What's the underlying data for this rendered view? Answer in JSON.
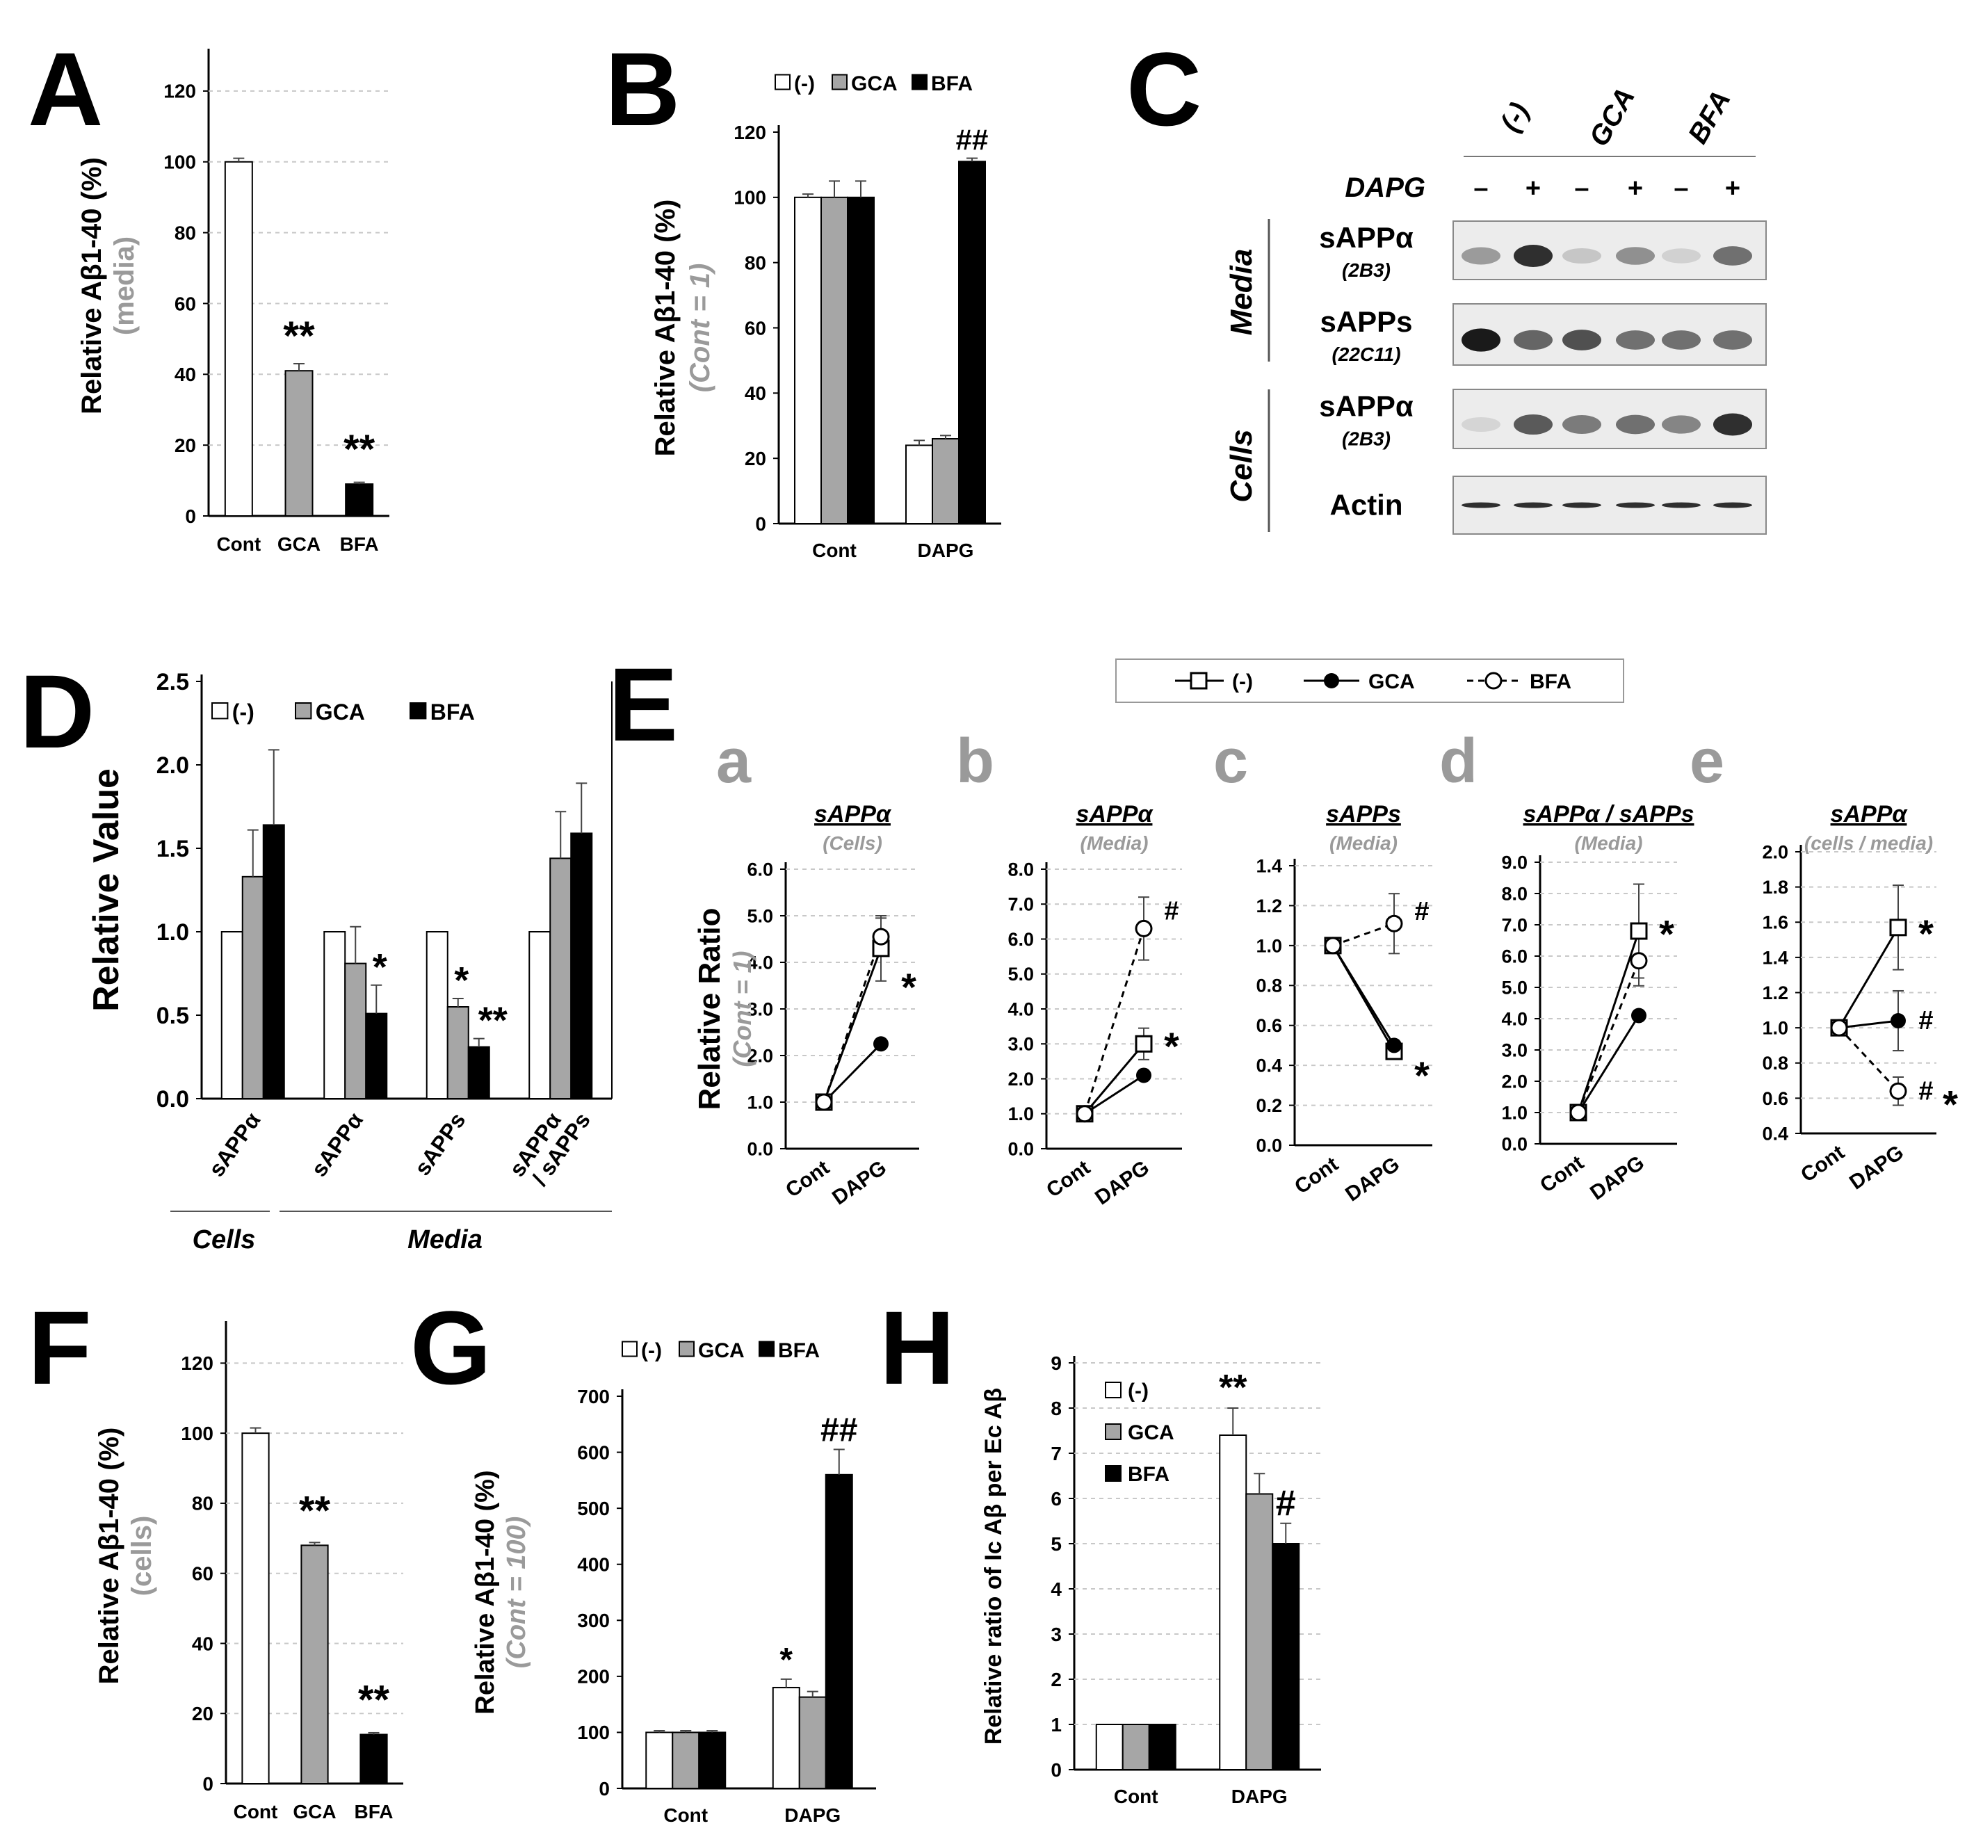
{
  "colors": {
    "none": "#ffffff",
    "gca": "#a6a6a6",
    "bfa": "#000000",
    "gray_text": "#9a9a9a",
    "grid": "#c8c8c8"
  },
  "series_names": [
    "(-)",
    "GCA",
    "BFA"
  ],
  "chart_data": [
    {
      "id": "A",
      "panel": "A",
      "type": "bar",
      "categories": [
        "Cont",
        "GCA",
        "BFA"
      ],
      "values": [
        100,
        41,
        9
      ],
      "errors": [
        1,
        2,
        0.5
      ],
      "sig": [
        "",
        "**",
        "**"
      ],
      "ylabel": "Relative Aβ1-40 (%)",
      "ylabel2": "(media)",
      "ylim": [
        0,
        130
      ],
      "yticks": [
        0,
        20,
        40,
        60,
        80,
        100,
        120
      ],
      "grid": true
    },
    {
      "id": "B",
      "panel": "B",
      "type": "bar",
      "categories": [
        "Cont",
        "DAPG"
      ],
      "series": [
        {
          "name": "(-)",
          "values": [
            100,
            24
          ]
        },
        {
          "name": "GCA",
          "values": [
            100,
            26
          ]
        },
        {
          "name": "BFA",
          "values": [
            100,
            111
          ]
        }
      ],
      "errors": [
        [
          1,
          5,
          5
        ],
        [
          1.5,
          1,
          1
        ]
      ],
      "sig": [
        [
          "",
          "",
          ""
        ],
        [
          "",
          "",
          "##"
        ]
      ],
      "ylabel": "Relative Aβ1-40 (%)",
      "ylabel2": "(Cont = 1)",
      "ylim": [
        0,
        120
      ],
      "yticks": [
        0,
        20,
        40,
        60,
        80,
        100,
        120
      ],
      "legend": "top"
    },
    {
      "id": "D",
      "panel": "D",
      "type": "bar",
      "categories": [
        "sAPPα",
        "sAPPα",
        "sAPPs",
        "sAPPα / sAPPs"
      ],
      "groups": [
        "Cells",
        "Media"
      ],
      "series": [
        {
          "name": "(-)",
          "values": [
            1.0,
            1.0,
            1.0,
            1.0
          ]
        },
        {
          "name": "GCA",
          "values": [
            1.33,
            0.81,
            0.55,
            1.44
          ]
        },
        {
          "name": "BFA",
          "values": [
            1.64,
            0.51,
            0.31,
            1.59
          ]
        }
      ],
      "errors": [
        [
          0,
          0.28,
          0.45
        ],
        [
          0,
          0.22,
          0.17
        ],
        [
          0,
          0.05,
          0.05
        ],
        [
          0,
          0.28,
          0.3
        ]
      ],
      "sig": [
        [
          "",
          "",
          ""
        ],
        [
          "",
          "",
          "*"
        ],
        [
          "",
          "*",
          "**"
        ],
        [
          "",
          "",
          ""
        ]
      ],
      "ylabel": "Relative Value",
      "ylim": [
        0,
        2.5
      ],
      "yticks": [
        0.0,
        0.5,
        1.0,
        1.5,
        2.0,
        2.5
      ],
      "legend": "top"
    },
    {
      "id": "Ea",
      "panel": "a",
      "type": "line",
      "title": "sAPPα",
      "subtitle": "(Cells)",
      "x": [
        "Cont",
        "DAPG"
      ],
      "series": [
        {
          "name": "(-)",
          "values": [
            1.0,
            4.3
          ],
          "err": 0.7
        },
        {
          "name": "GCA",
          "values": [
            1.0,
            2.25
          ],
          "err": 0
        },
        {
          "name": "BFA",
          "values": [
            1.0,
            4.55
          ],
          "err": 0.4
        }
      ],
      "sig": [
        {
          "text": "*",
          "y": 3.6
        }
      ],
      "ylim": [
        0,
        6
      ],
      "yticks": [
        "0.0",
        "1.0",
        "2.0",
        "3.0",
        "4.0",
        "5.0",
        "6.0"
      ],
      "ylabel": "Relative Ratio",
      "ylabel2": "(Cont = 1)"
    },
    {
      "id": "Eb",
      "panel": "b",
      "type": "line",
      "title": "sAPPα",
      "subtitle": "(Media)",
      "x": [
        "Cont",
        "DAPG"
      ],
      "series": [
        {
          "name": "(-)",
          "values": [
            1.0,
            3.0
          ],
          "err": 0.45
        },
        {
          "name": "GCA",
          "values": [
            1.0,
            2.1
          ],
          "err": 0
        },
        {
          "name": "BFA",
          "values": [
            1.0,
            6.3
          ],
          "err": 0.9
        }
      ],
      "sig": [
        {
          "text": "#",
          "y": 6.8
        },
        {
          "text": "*",
          "y": 3.1
        }
      ],
      "ylim": [
        0,
        8
      ],
      "yticks": [
        "0.0",
        "1.0",
        "2.0",
        "3.0",
        "4.0",
        "5.0",
        "6.0",
        "7.0",
        "8.0"
      ]
    },
    {
      "id": "Ec",
      "panel": "c",
      "type": "line",
      "title": "sAPPs",
      "subtitle": "(Media)",
      "x": [
        "Cont",
        "DAPG"
      ],
      "series": [
        {
          "name": "(-)",
          "values": [
            1.0,
            0.47
          ],
          "err": 0.04
        },
        {
          "name": "GCA",
          "values": [
            1.0,
            0.5
          ],
          "err": 0
        },
        {
          "name": "BFA",
          "values": [
            1.0,
            1.11
          ],
          "err": 0.15
        }
      ],
      "sig": [
        {
          "text": "#",
          "y": 1.17
        },
        {
          "text": "*",
          "y": 0.38
        }
      ],
      "ylim": [
        0,
        1.4
      ],
      "yticks": [
        "0.0",
        "0.2",
        "0.4",
        "0.6",
        "0.8",
        "1.0",
        "1.2",
        "1.4"
      ]
    },
    {
      "id": "Ed",
      "panel": "d",
      "type": "line",
      "title": "sAPPα / sAPPs",
      "subtitle": "(Media)",
      "x": [
        "Cont",
        "DAPG"
      ],
      "series": [
        {
          "name": "(-)",
          "values": [
            1.0,
            6.8
          ],
          "err": 1.5
        },
        {
          "name": "GCA",
          "values": [
            1.0,
            4.1
          ],
          "err": 0
        },
        {
          "name": "BFA",
          "values": [
            1.0,
            5.85
          ],
          "err": 0.8
        }
      ],
      "sig": [
        {
          "text": "*",
          "y": 6.9
        }
      ],
      "ylim": [
        0,
        9
      ],
      "yticks": [
        "0.0",
        "1.0",
        "2.0",
        "3.0",
        "4.0",
        "5.0",
        "6.0",
        "7.0",
        "8.0",
        "9.0"
      ]
    },
    {
      "id": "Ee",
      "panel": "e",
      "type": "line",
      "title": "sAPPα",
      "subtitle": "(cells / media)",
      "x": [
        "Cont",
        "DAPG"
      ],
      "series": [
        {
          "name": "(-)",
          "values": [
            1.0,
            1.57
          ],
          "err": 0.24
        },
        {
          "name": "GCA",
          "values": [
            1.0,
            1.04
          ],
          "err": 0.17
        },
        {
          "name": "BFA",
          "values": [
            1.0,
            0.64
          ],
          "err": 0.08
        }
      ],
      "sig": [
        {
          "text": "*",
          "y": 1.57
        },
        {
          "text": "#",
          "y": 1.04
        },
        {
          "text": "#",
          "y": 0.64
        },
        {
          "text": "*",
          "y": 0.6
        }
      ],
      "ylim": [
        0.4,
        2.0
      ],
      "yticks": [
        "0.4",
        "0.6",
        "0.8",
        "1.0",
        "1.2",
        "1.4",
        "1.6",
        "1.8",
        "2.0"
      ]
    },
    {
      "id": "F",
      "panel": "F",
      "type": "bar",
      "categories": [
        "Cont",
        "GCA",
        "BFA"
      ],
      "values": [
        100,
        68,
        14
      ],
      "errors": [
        1.5,
        0.8,
        0.5
      ],
      "sig": [
        "",
        "**",
        "**"
      ],
      "ylabel": "Relative Aβ1-40 (%)",
      "ylabel2": "(cells)",
      "ylim": [
        0,
        130
      ],
      "yticks": [
        0,
        20,
        40,
        60,
        80,
        100,
        120
      ],
      "grid": true
    },
    {
      "id": "G",
      "panel": "G",
      "type": "bar",
      "categories": [
        "Cont",
        "DAPG"
      ],
      "series": [
        {
          "name": "(-)",
          "values": [
            100,
            180
          ]
        },
        {
          "name": "GCA",
          "values": [
            100,
            163
          ]
        },
        {
          "name": "BFA",
          "values": [
            100,
            560
          ]
        }
      ],
      "errors": [
        [
          3,
          3,
          3
        ],
        [
          15,
          10,
          45
        ]
      ],
      "sig": [
        [
          "",
          "",
          ""
        ],
        [
          "*",
          "",
          "##"
        ]
      ],
      "ylabel": "Relative Aβ1-40 (%)",
      "ylabel2": "(Cont = 100)",
      "ylim": [
        0,
        700
      ],
      "yticks": [
        0,
        100,
        200,
        300,
        400,
        500,
        600,
        700
      ],
      "legend": "top"
    },
    {
      "id": "H",
      "panel": "H",
      "type": "bar",
      "categories": [
        "Cont",
        "DAPG"
      ],
      "series": [
        {
          "name": "(-)",
          "values": [
            1.0,
            7.4
          ]
        },
        {
          "name": "GCA",
          "values": [
            1.0,
            6.1
          ]
        },
        {
          "name": "BFA",
          "values": [
            1.0,
            5.0
          ]
        }
      ],
      "errors": [
        [
          0,
          0,
          0
        ],
        [
          0.6,
          0.45,
          0.45
        ]
      ],
      "sig": [
        [
          "",
          "",
          ""
        ],
        [
          "**",
          "",
          "#"
        ]
      ],
      "ylabel": "Relative  ratio of Ic Aβ per Ec Aβ",
      "ylim": [
        0,
        9
      ],
      "yticks": [
        0,
        1,
        2,
        3,
        4,
        5,
        6,
        7,
        8,
        9
      ],
      "legend": "top-left",
      "grid": true
    }
  ],
  "panel_letters": {
    "A": "A",
    "B": "B",
    "C": "C",
    "D": "D",
    "E": "E",
    "F": "F",
    "G": "G",
    "H": "H"
  },
  "blot": {
    "treatments": [
      "(-)",
      "GCA",
      "BFA"
    ],
    "dapg_label": "DAPG",
    "dapg_signs": [
      "–",
      "+",
      "–",
      "+",
      "–",
      "+"
    ],
    "groups": [
      "Media",
      "Cells"
    ],
    "rows": [
      {
        "label": "sAPPα",
        "antibody": "(2B3)",
        "intensity": [
          0.35,
          0.85,
          0.15,
          0.4,
          0.1,
          0.55
        ]
      },
      {
        "label": "sAPPs",
        "antibody": "(22C11)",
        "intensity": [
          0.95,
          0.6,
          0.7,
          0.55,
          0.55,
          0.55
        ]
      },
      {
        "label": "sAPPα",
        "antibody": "(2B3)",
        "intensity": [
          0.08,
          0.65,
          0.5,
          0.55,
          0.45,
          0.85
        ]
      },
      {
        "label": "Actin",
        "antibody": "",
        "intensity": [
          0.85,
          0.85,
          0.85,
          0.85,
          0.85,
          0.85
        ]
      }
    ]
  },
  "d_groups": {
    "cells": "Cells",
    "media": "Media"
  },
  "e_legend": [
    "(-)",
    "GCA",
    "BFA"
  ]
}
